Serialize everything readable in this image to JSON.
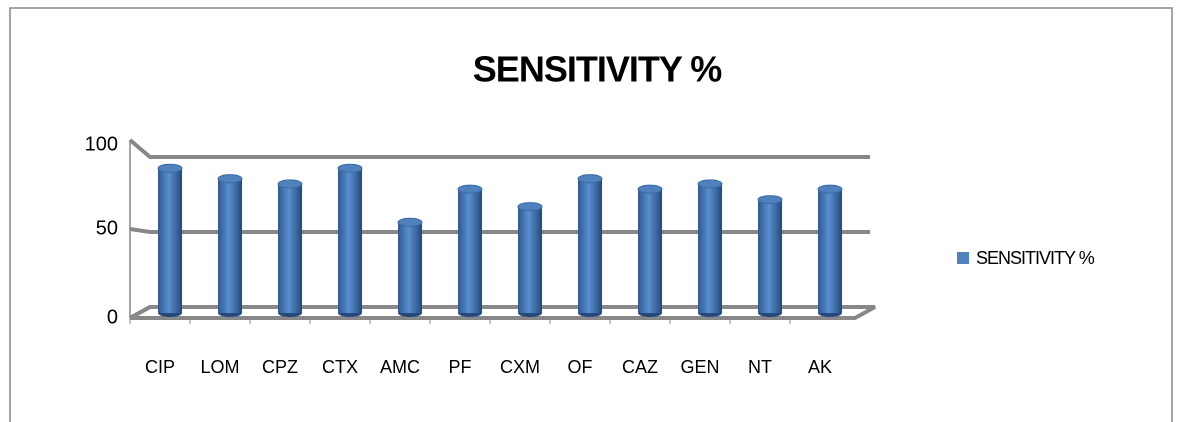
{
  "chart_data": {
    "type": "bar",
    "title": "SENSITIVITY %",
    "categories": [
      "CIP",
      "LOM",
      "CPZ",
      "CTX",
      "AMC",
      "PF",
      "CXM",
      "OF",
      "CAZ",
      "GEN",
      "NT",
      "AK"
    ],
    "series": [
      {
        "name": "SENSITIVITY %",
        "color": "#4f81bd",
        "values": [
          83,
          77,
          74,
          83,
          52,
          71,
          61,
          77,
          71,
          74,
          65,
          71
        ]
      }
    ],
    "ylim": [
      0,
      100
    ],
    "yticks": [
      0,
      50,
      100
    ],
    "grid": true,
    "legend": "right"
  }
}
